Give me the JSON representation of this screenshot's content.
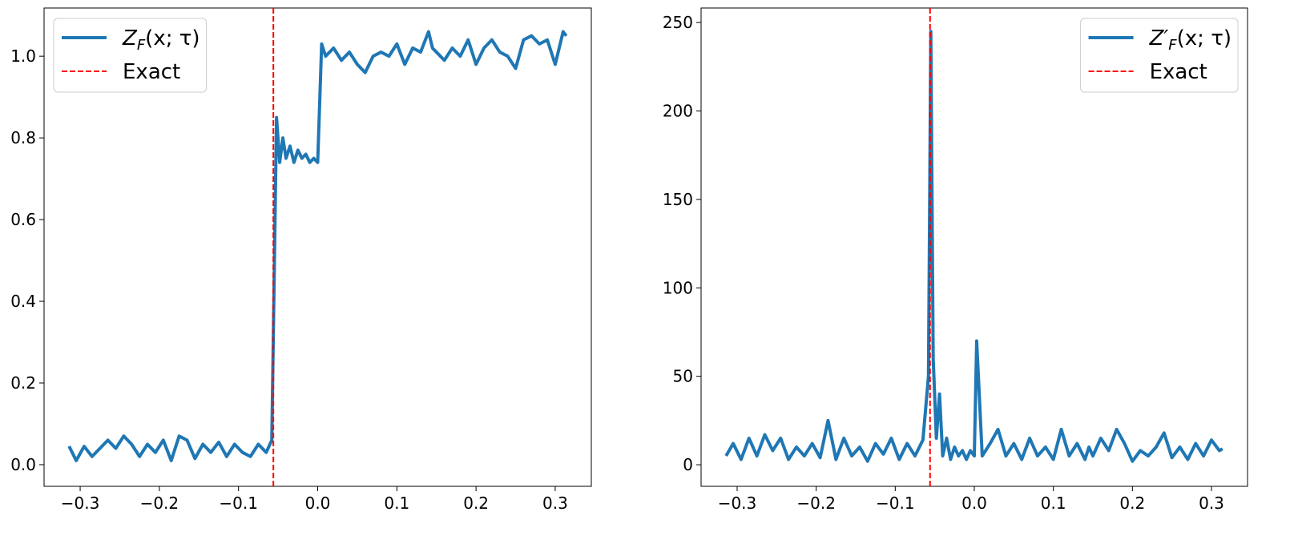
{
  "chart_data": [
    {
      "type": "line",
      "x": [
        -0.314,
        -0.305,
        -0.295,
        -0.285,
        -0.275,
        -0.265,
        -0.255,
        -0.245,
        -0.235,
        -0.225,
        -0.215,
        -0.205,
        -0.195,
        -0.185,
        -0.175,
        -0.165,
        -0.155,
        -0.145,
        -0.135,
        -0.125,
        -0.115,
        -0.105,
        -0.095,
        -0.085,
        -0.075,
        -0.065,
        -0.058,
        -0.055,
        -0.052,
        -0.048,
        -0.044,
        -0.04,
        -0.035,
        -0.03,
        -0.025,
        -0.02,
        -0.015,
        -0.01,
        -0.005,
        0.0,
        0.005,
        0.01,
        0.02,
        0.03,
        0.04,
        0.05,
        0.06,
        0.07,
        0.08,
        0.09,
        0.1,
        0.11,
        0.12,
        0.13,
        0.14,
        0.145,
        0.15,
        0.16,
        0.17,
        0.18,
        0.19,
        0.2,
        0.21,
        0.22,
        0.23,
        0.24,
        0.25,
        0.26,
        0.27,
        0.28,
        0.29,
        0.3,
        0.31,
        0.314
      ],
      "series": [
        {
          "name": "ZF(x; τ)",
          "color": "#1f77b4",
          "values": [
            0.045,
            0.01,
            0.045,
            0.02,
            0.04,
            0.06,
            0.04,
            0.07,
            0.05,
            0.02,
            0.05,
            0.03,
            0.06,
            0.01,
            0.07,
            0.06,
            0.015,
            0.05,
            0.03,
            0.055,
            0.02,
            0.05,
            0.03,
            0.02,
            0.05,
            0.03,
            0.06,
            0.45,
            0.85,
            0.74,
            0.8,
            0.75,
            0.78,
            0.74,
            0.77,
            0.75,
            0.76,
            0.74,
            0.75,
            0.74,
            1.03,
            1.0,
            1.02,
            0.99,
            1.01,
            0.98,
            0.96,
            1.0,
            1.01,
            1.0,
            1.03,
            0.98,
            1.02,
            1.01,
            1.06,
            1.02,
            1.01,
            0.99,
            1.02,
            1.0,
            1.04,
            0.98,
            1.02,
            1.04,
            1.01,
            1.0,
            0.97,
            1.04,
            1.05,
            1.03,
            1.04,
            0.98,
            1.06,
            1.05
          ]
        }
      ],
      "vline": {
        "name": "Exact",
        "x": -0.056,
        "color": "#ff0000"
      },
      "xlim": [
        -0.3456,
        0.3456
      ],
      "xticks": [
        {
          "value": -0.3,
          "label": "−0.3"
        },
        {
          "value": -0.2,
          "label": "−0.2"
        },
        {
          "value": -0.1,
          "label": "−0.1"
        },
        {
          "value": 0,
          "label": "0.0"
        },
        0.1,
        0.2,
        0.3
      ],
      "ylim": [
        -0.053,
        1.118
      ],
      "yticks": [
        {
          "value": 0,
          "label": "0.0"
        },
        0.2,
        0.4,
        0.6,
        0.8,
        {
          "value": 1,
          "label": "1.0"
        }
      ],
      "legend": "upper left"
    },
    {
      "type": "line",
      "x": [
        -0.314,
        -0.305,
        -0.295,
        -0.285,
        -0.275,
        -0.265,
        -0.255,
        -0.245,
        -0.235,
        -0.225,
        -0.215,
        -0.205,
        -0.195,
        -0.185,
        -0.175,
        -0.165,
        -0.155,
        -0.145,
        -0.135,
        -0.125,
        -0.115,
        -0.105,
        -0.095,
        -0.085,
        -0.075,
        -0.065,
        -0.058,
        -0.055,
        -0.052,
        -0.048,
        -0.044,
        -0.04,
        -0.035,
        -0.03,
        -0.025,
        -0.02,
        -0.015,
        -0.01,
        -0.005,
        0.0,
        0.003,
        0.01,
        0.02,
        0.03,
        0.04,
        0.05,
        0.06,
        0.07,
        0.08,
        0.09,
        0.1,
        0.11,
        0.12,
        0.13,
        0.14,
        0.145,
        0.15,
        0.16,
        0.17,
        0.18,
        0.19,
        0.2,
        0.21,
        0.22,
        0.23,
        0.24,
        0.25,
        0.26,
        0.27,
        0.28,
        0.29,
        0.3,
        0.31,
        0.314
      ],
      "series": [
        {
          "name": "Z′F(x; τ)",
          "color": "#1f77b4",
          "values": [
            5,
            12,
            3,
            15,
            5,
            17,
            8,
            15,
            3,
            10,
            5,
            12,
            4,
            25,
            3,
            15,
            5,
            10,
            2,
            12,
            6,
            15,
            3,
            12,
            5,
            14,
            50,
            245,
            60,
            15,
            40,
            5,
            15,
            3,
            10,
            5,
            8,
            3,
            8,
            5,
            70,
            5,
            12,
            20,
            5,
            12,
            3,
            15,
            5,
            10,
            3,
            20,
            5,
            12,
            3,
            10,
            5,
            15,
            8,
            20,
            12,
            2,
            8,
            5,
            10,
            18,
            4,
            10,
            3,
            12,
            5,
            14,
            8,
            9
          ]
        }
      ],
      "vline": {
        "name": "Exact",
        "x": -0.056,
        "color": "#ff0000"
      },
      "xlim": [
        -0.3456,
        0.3456
      ],
      "xticks": [
        {
          "value": -0.3,
          "label": "−0.3"
        },
        {
          "value": -0.2,
          "label": "−0.2"
        },
        {
          "value": -0.1,
          "label": "−0.1"
        },
        {
          "value": 0,
          "label": "0.0"
        },
        0.1,
        0.2,
        0.3
      ],
      "ylim": [
        -12.2,
        258.2
      ],
      "yticks": [
        0,
        50,
        100,
        150,
        200,
        250
      ],
      "legend": "upper right"
    }
  ]
}
